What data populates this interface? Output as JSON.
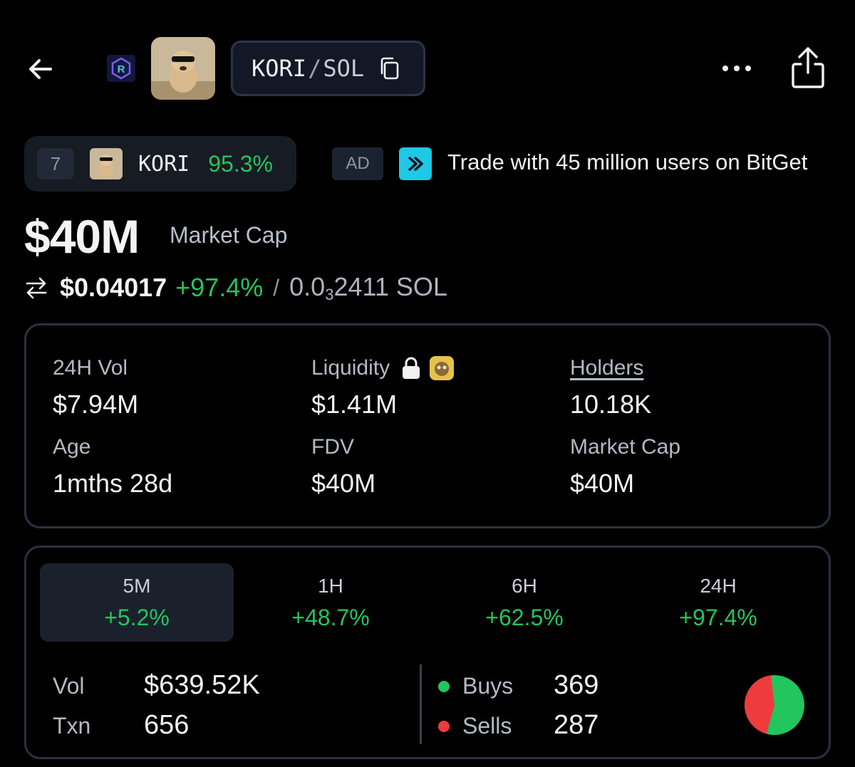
{
  "header": {
    "pair_base": "KORI",
    "pair_sep": "/",
    "pair_quote": "SOL"
  },
  "trending": {
    "rank": "7",
    "symbol": "KORI",
    "change": "95.3%"
  },
  "ad": {
    "badge": "AD",
    "text": "Trade with 45 million users on BitGet"
  },
  "market_cap": {
    "value": "$40M",
    "label": "Market Cap"
  },
  "price": {
    "usd": "$0.04017",
    "change": "+97.4%",
    "slash": "/",
    "sol_prefix": "0.0",
    "sol_zeros": "3",
    "sol_digits": "2411 SOL"
  },
  "stats": {
    "vol_label": "24H Vol",
    "vol_value": "$7.94M",
    "liq_label": "Liquidity",
    "liq_value": "$1.41M",
    "holders_label": "Holders",
    "holders_value": "10.18K",
    "age_label": "Age",
    "age_value": "1mths 28d",
    "fdv_label": "FDV",
    "fdv_value": "$40M",
    "mcap_label": "Market Cap",
    "mcap_value": "$40M"
  },
  "timeframes": [
    {
      "label": "5M",
      "change": "+5.2%",
      "active": true
    },
    {
      "label": "1H",
      "change": "+48.7%",
      "active": false
    },
    {
      "label": "6H",
      "change": "+62.5%",
      "active": false
    },
    {
      "label": "24H",
      "change": "+97.4%",
      "active": false
    }
  ],
  "txns": {
    "vol_label": "Vol",
    "vol_value": "$639.52K",
    "txn_label": "Txn",
    "txn_value": "656",
    "buys_label": "Buys",
    "buys_value": "369",
    "sells_label": "Sells",
    "sells_value": "287",
    "buy_color": "#22c55e",
    "sell_color": "#ef3b3b"
  },
  "icons": {
    "back": "arrow-left-icon",
    "copy": "copy-icon",
    "more": "ellipsis-icon",
    "share": "share-icon",
    "swap": "swap-arrows-icon",
    "lock": "lock-icon"
  }
}
